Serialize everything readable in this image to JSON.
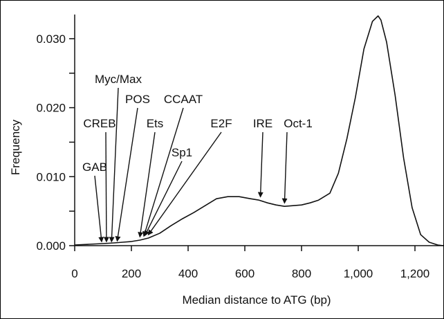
{
  "chart_data": {
    "type": "line",
    "title": "",
    "xlabel": "Median distance to ATG (bp)",
    "ylabel": "Frequency",
    "xlim": [
      0,
      1300
    ],
    "ylim": [
      0,
      0.0335
    ],
    "x_ticks": [
      {
        "value": 0,
        "label": "0"
      },
      {
        "value": 200,
        "label": "200"
      },
      {
        "value": 400,
        "label": "400"
      },
      {
        "value": 600,
        "label": "600"
      },
      {
        "value": 800,
        "label": "800"
      },
      {
        "value": 1000,
        "label": "1,000"
      },
      {
        "value": 1200,
        "label": "1,200"
      }
    ],
    "y_ticks": [
      {
        "value": 0,
        "label": "0.000"
      },
      {
        "value": 0.005,
        "label": ""
      },
      {
        "value": 0.01,
        "label": "0.010"
      },
      {
        "value": 0.015,
        "label": ""
      },
      {
        "value": 0.02,
        "label": "0.020"
      },
      {
        "value": 0.025,
        "label": ""
      },
      {
        "value": 0.03,
        "label": "0.030"
      }
    ],
    "series": [
      {
        "x": [
          0,
          50,
          100,
          140,
          170,
          200,
          230,
          260,
          300,
          340,
          380,
          420,
          460,
          500,
          540,
          580,
          620,
          650,
          680,
          710,
          740,
          770,
          800,
          830,
          860,
          900,
          930,
          960,
          990,
          1020,
          1050,
          1070,
          1080,
          1100,
          1130,
          1160,
          1190,
          1220,
          1250,
          1280,
          1300
        ],
        "y": [
          0.0001,
          0.0002,
          0.0003,
          0.0004,
          0.0005,
          0.0006,
          0.0008,
          0.0011,
          0.0018,
          0.0029,
          0.0039,
          0.0048,
          0.0058,
          0.0068,
          0.0071,
          0.0071,
          0.0068,
          0.0066,
          0.0062,
          0.0059,
          0.0057,
          0.0058,
          0.0059,
          0.0062,
          0.0066,
          0.0076,
          0.0105,
          0.0155,
          0.0215,
          0.0285,
          0.0325,
          0.0333,
          0.0327,
          0.0295,
          0.0218,
          0.0127,
          0.0055,
          0.0016,
          0.0005,
          0.0001,
          0
        ]
      }
    ],
    "annotations": [
      {
        "label": "GAB",
        "x": 95,
        "y": 0.0002
      },
      {
        "label": "CREB",
        "x": 112,
        "y": 0.0002
      },
      {
        "label": "Myc/Max",
        "x": 130,
        "y": 0.0002
      },
      {
        "label": "POS",
        "x": 150,
        "y": 0.0003
      },
      {
        "label": "Ets",
        "x": 230,
        "y": 0.0009
      },
      {
        "label": "CCAAT",
        "x": 244,
        "y": 0.001
      },
      {
        "label": "Sp1",
        "x": 248,
        "y": 0.0011
      },
      {
        "label": "E2F",
        "x": 260,
        "y": 0.0012
      },
      {
        "label": "IRE",
        "x": 655,
        "y": 0.0067
      },
      {
        "label": "Oct-1",
        "x": 740,
        "y": 0.0058
      }
    ]
  }
}
